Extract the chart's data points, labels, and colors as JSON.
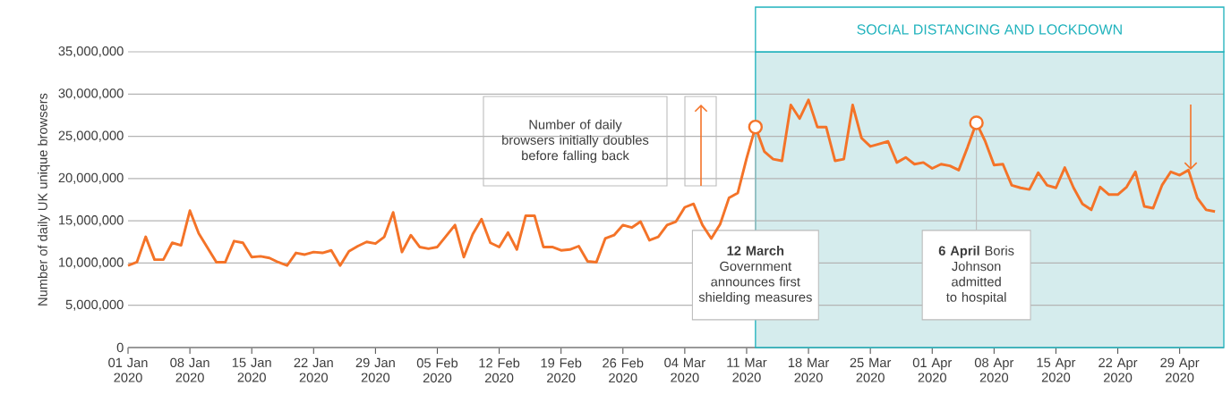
{
  "chart_data": {
    "type": "line",
    "ylabel": "Number of daily UK unique browsers",
    "color": "#f47328",
    "x": [
      "2020-01-01",
      "2020-01-02",
      "2020-01-03",
      "2020-01-04",
      "2020-01-05",
      "2020-01-06",
      "2020-01-07",
      "2020-01-08",
      "2020-01-09",
      "2020-01-10",
      "2020-01-11",
      "2020-01-12",
      "2020-01-13",
      "2020-01-14",
      "2020-01-15",
      "2020-01-16",
      "2020-01-17",
      "2020-01-18",
      "2020-01-19",
      "2020-01-20",
      "2020-01-21",
      "2020-01-22",
      "2020-01-23",
      "2020-01-24",
      "2020-01-25",
      "2020-01-26",
      "2020-01-27",
      "2020-01-28",
      "2020-01-29",
      "2020-01-30",
      "2020-01-31",
      "2020-02-01",
      "2020-02-02",
      "2020-02-03",
      "2020-02-04",
      "2020-02-05",
      "2020-02-06",
      "2020-02-07",
      "2020-02-08",
      "2020-02-09",
      "2020-02-10",
      "2020-02-11",
      "2020-02-12",
      "2020-02-13",
      "2020-02-14",
      "2020-02-15",
      "2020-02-16",
      "2020-02-17",
      "2020-02-18",
      "2020-02-19",
      "2020-02-20",
      "2020-02-21",
      "2020-02-22",
      "2020-02-23",
      "2020-02-24",
      "2020-02-25",
      "2020-02-26",
      "2020-02-27",
      "2020-02-28",
      "2020-02-29",
      "2020-03-01",
      "2020-03-02",
      "2020-03-03",
      "2020-03-04",
      "2020-03-05",
      "2020-03-06",
      "2020-03-07",
      "2020-03-08",
      "2020-03-09",
      "2020-03-10",
      "2020-03-11",
      "2020-03-12",
      "2020-03-13",
      "2020-03-14",
      "2020-03-15",
      "2020-03-16",
      "2020-03-17",
      "2020-03-18",
      "2020-03-19",
      "2020-03-20",
      "2020-03-21",
      "2020-03-22",
      "2020-03-23",
      "2020-03-24",
      "2020-03-25",
      "2020-03-26",
      "2020-03-27",
      "2020-03-28",
      "2020-03-29",
      "2020-03-30",
      "2020-03-31",
      "2020-04-01",
      "2020-04-02",
      "2020-04-03",
      "2020-04-04",
      "2020-04-05",
      "2020-04-06",
      "2020-04-07",
      "2020-04-08",
      "2020-04-09",
      "2020-04-10",
      "2020-04-11",
      "2020-04-12",
      "2020-04-13",
      "2020-04-14",
      "2020-04-15",
      "2020-04-16",
      "2020-04-17",
      "2020-04-18",
      "2020-04-19",
      "2020-04-20",
      "2020-04-21",
      "2020-04-22",
      "2020-04-23",
      "2020-04-24",
      "2020-04-25",
      "2020-04-26",
      "2020-04-27",
      "2020-04-28",
      "2020-04-29",
      "2020-04-30",
      "2020-05-01",
      "2020-05-02",
      "2020-05-03"
    ],
    "values": [
      9700000,
      10100000,
      13100000,
      10400000,
      10400000,
      12400000,
      12100000,
      16200000,
      13500000,
      11800000,
      10100000,
      10100000,
      12600000,
      12400000,
      10700000,
      10800000,
      10600000,
      10100000,
      9700000,
      11200000,
      11000000,
      11300000,
      11200000,
      11500000,
      9700000,
      11400000,
      12000000,
      12500000,
      12300000,
      13100000,
      16000000,
      11300000,
      13300000,
      11900000,
      11700000,
      11900000,
      13200000,
      14500000,
      10700000,
      13400000,
      15200000,
      12400000,
      11900000,
      13600000,
      11600000,
      15600000,
      15600000,
      11900000,
      11900000,
      11500000,
      11600000,
      12000000,
      10200000,
      10100000,
      12900000,
      13300000,
      14500000,
      14200000,
      14900000,
      12700000,
      13100000,
      14500000,
      14900000,
      16600000,
      17000000,
      14500000,
      12900000,
      14600000,
      17700000,
      18300000,
      22400000,
      26100000,
      23200000,
      22300000,
      22100000,
      28700000,
      27100000,
      29300000,
      26100000,
      26100000,
      22100000,
      22300000,
      28700000,
      24800000,
      23800000,
      24100000,
      24400000,
      21900000,
      22500000,
      21700000,
      21900000,
      21200000,
      21700000,
      21500000,
      21000000,
      23700000,
      26600000,
      24400000,
      21600000,
      21700000,
      19200000,
      18900000,
      18700000,
      20700000,
      19200000,
      18900000,
      21300000,
      18900000,
      17000000,
      16300000,
      19000000,
      18100000,
      18100000,
      19000000,
      20800000,
      16700000,
      16500000,
      19200000,
      20800000,
      20400000,
      21000000,
      17700000,
      16300000,
      16100000
    ],
    "xlim": [
      "2020-01-01",
      "2020-05-04"
    ],
    "xticks": [
      {
        "value": "2020-01-01",
        "label": "01 Jan 2020"
      },
      {
        "value": "2020-01-08",
        "label": "08 Jan 2020"
      },
      {
        "value": "2020-01-15",
        "label": "15 Jan 2020"
      },
      {
        "value": "2020-01-22",
        "label": "22 Jan 2020"
      },
      {
        "value": "2020-01-29",
        "label": "29 Jan 2020"
      },
      {
        "value": "2020-02-05",
        "label": "05 Feb 2020"
      },
      {
        "value": "2020-02-12",
        "label": "12 Feb 2020"
      },
      {
        "value": "2020-02-19",
        "label": "19 Feb 2020"
      },
      {
        "value": "2020-02-26",
        "label": "26 Feb 2020"
      },
      {
        "value": "2020-03-04",
        "label": "04 Mar 2020"
      },
      {
        "value": "2020-03-11",
        "label": "11 Mar 2020"
      },
      {
        "value": "2020-03-18",
        "label": "18 Mar 2020"
      },
      {
        "value": "2020-03-25",
        "label": "25 Mar 2020"
      },
      {
        "value": "2020-04-01",
        "label": "01 Apr 2020"
      },
      {
        "value": "2020-04-08",
        "label": "08 Apr 2020"
      },
      {
        "value": "2020-04-15",
        "label": "15 Apr 2020"
      },
      {
        "value": "2020-04-22",
        "label": "22 Apr 2020"
      },
      {
        "value": "2020-04-29",
        "label": "29 Apr 2020"
      }
    ],
    "ylim": [
      0,
      35000000
    ],
    "yticks": [
      0,
      {
        "value": 5000000,
        "label": "5,000,000"
      },
      {
        "value": 10000000,
        "label": "10,000,000"
      },
      {
        "value": 15000000,
        "label": "15,000,000"
      },
      {
        "value": 20000000,
        "label": "20,000,000"
      },
      {
        "value": 25000000,
        "label": "25,000,000"
      },
      {
        "value": 30000000,
        "label": "30,000,000"
      },
      {
        "value": 35000000,
        "label": "35,000,000"
      }
    ],
    "grid": "y",
    "bands": [
      {
        "axis": "x",
        "from": "2020-03-12",
        "to": "2020-05-04",
        "label": "SOCIAL DISTANCING AND LOCKDOWN",
        "color": "#d5eced"
      }
    ],
    "annotations": [
      "Number of daily browsers initially doubles before falling back",
      {
        "text": "**12 March** Government announces first shielding measures",
        "x": "2020-03-12",
        "y": 26100000
      },
      {
        "text": "**6 April** Boris Johnson admitted to hospital",
        "x": "2020-04-06",
        "y": 26600000
      }
    ]
  }
}
